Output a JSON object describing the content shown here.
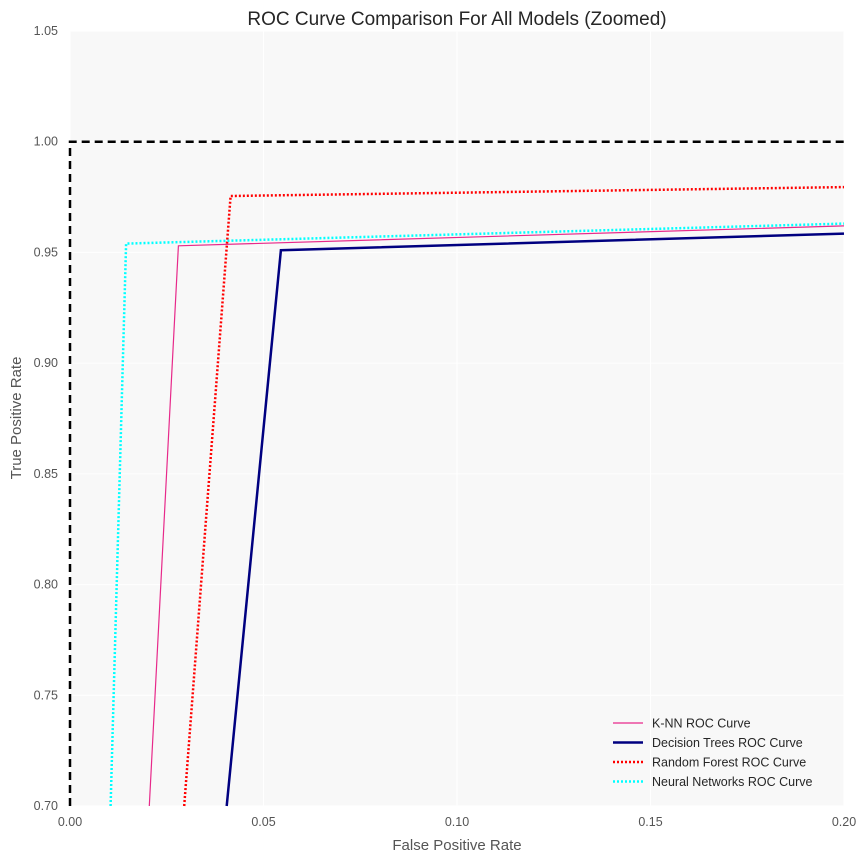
{
  "chart_data": {
    "type": "line",
    "title": "ROC Curve Comparison For All Models (Zoomed)",
    "xlabel": "False Positive Rate",
    "ylabel": "True Positive Rate",
    "xlim": [
      0.0,
      0.2
    ],
    "ylim": [
      0.7,
      1.05
    ],
    "xticks": [
      "0.00",
      "0.05",
      "0.10",
      "0.15",
      "0.20"
    ],
    "yticks": [
      "0.70",
      "0.75",
      "0.80",
      "0.85",
      "0.90",
      "0.95",
      "1.00",
      "1.05"
    ],
    "grid": true,
    "legend_position": "bottom-right",
    "series": [
      {
        "name": "K-NN ROC Curve",
        "color": "#e7298a",
        "style": "solid",
        "x": [
          0.0205,
          0.028,
          0.2
        ],
        "y": [
          0.7,
          0.953,
          0.962
        ]
      },
      {
        "name": "Decision Trees ROC Curve",
        "color": "#000080",
        "style": "solid",
        "x": [
          0.0405,
          0.0545,
          0.2
        ],
        "y": [
          0.7,
          0.951,
          0.9585
        ]
      },
      {
        "name": "Random Forest ROC Curve",
        "color": "#ff0000",
        "style": "dotted",
        "x": [
          0.0295,
          0.0415,
          0.2
        ],
        "y": [
          0.7,
          0.9755,
          0.9795
        ]
      },
      {
        "name": "Neural Networks ROC Curve",
        "color": "#00ffff",
        "style": "dotted",
        "x": [
          0.0105,
          0.0145,
          0.2
        ],
        "y": [
          0.7,
          0.954,
          0.963
        ]
      }
    ],
    "reference": {
      "color": "#000000",
      "style": "dashed",
      "x": [
        0.0,
        0.0,
        0.2
      ],
      "y": [
        0.7,
        1.0,
        1.0
      ]
    }
  }
}
